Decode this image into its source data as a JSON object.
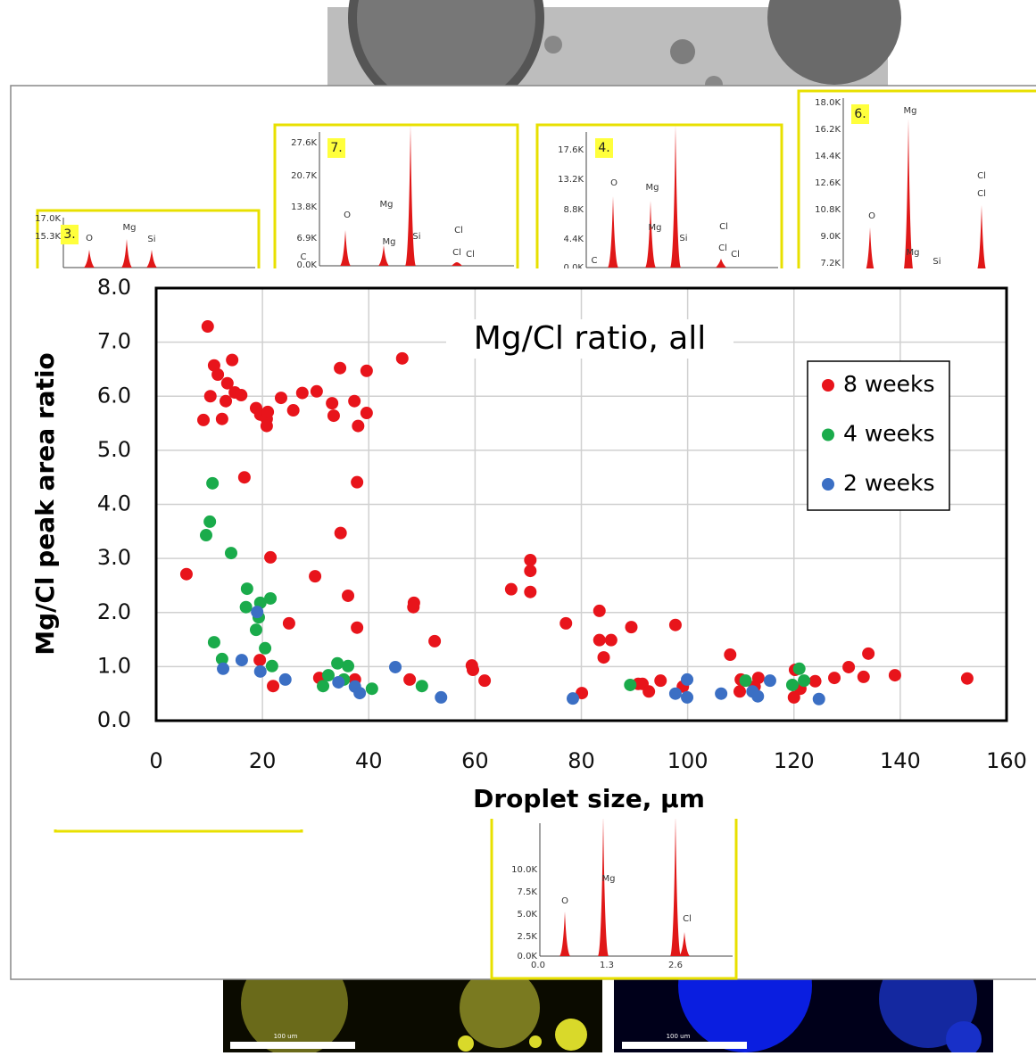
{
  "chart_data": {
    "type": "scatter",
    "title": "Mg/Cl ratio, all",
    "x_label": "Droplet size, µm",
    "y_label": "Mg/Cl peak area ratio",
    "xlim": [
      0,
      160
    ],
    "xticks": [
      0,
      20,
      40,
      60,
      80,
      100,
      120,
      140,
      160
    ],
    "ylim": [
      0,
      8
    ],
    "yticks": [
      {
        "value": 0,
        "label": "0.0"
      },
      {
        "value": 1,
        "label": "1.0"
      },
      {
        "value": 2,
        "label": "2.0"
      },
      {
        "value": 3,
        "label": "3.0"
      },
      {
        "value": 4,
        "label": "4.0"
      },
      {
        "value": 5,
        "label": "5.0"
      },
      {
        "value": 6,
        "label": "6.0"
      },
      {
        "value": 7,
        "label": "7.0"
      },
      {
        "value": 8,
        "label": "8.0"
      }
    ],
    "grid": true,
    "legend": "upper right",
    "series": [
      {
        "name": "8 weeks",
        "color": "#e8141b",
        "x": [
          9.7,
          10.9,
          14.3,
          11.6,
          13.4,
          14.8,
          8.9,
          10.2,
          12.4,
          16,
          13.1,
          18.8,
          19.6,
          20.8,
          20.8,
          21,
          23.5,
          25.8,
          27.5,
          30.2,
          33.1,
          33.4,
          34.6,
          37.3,
          38,
          39.6,
          39.6,
          46.3,
          16.6,
          37.8,
          34.7,
          5.7,
          21.5,
          29.9,
          36.1,
          25,
          37.8,
          48.5,
          48.4,
          52.4,
          19.5,
          22,
          30.7,
          37.4,
          47.7,
          59.4,
          59.6,
          61.8,
          66.8,
          70.4,
          70.4,
          70.4,
          77.1,
          83.4,
          83.4,
          85.6,
          84.2,
          89.4,
          97.7,
          80.1,
          90.7,
          91.5,
          92.7,
          94.9,
          99.1,
          108,
          110,
          109.8,
          112.6,
          113.3,
          120.2,
          120,
          124,
          127.6,
          130.3,
          133.1,
          134,
          139,
          152.6,
          121.2
        ],
        "values": [
          7.29,
          6.57,
          6.67,
          6.4,
          6.24,
          6.07,
          5.56,
          6.0,
          5.58,
          6.02,
          5.91,
          5.78,
          5.66,
          5.58,
          5.45,
          5.71,
          5.97,
          5.74,
          6.06,
          6.09,
          5.87,
          5.64,
          6.52,
          5.91,
          5.45,
          6.47,
          5.69,
          6.7,
          4.5,
          4.41,
          3.47,
          2.71,
          3.02,
          2.67,
          2.31,
          1.8,
          1.72,
          2.18,
          2.1,
          1.47,
          1.12,
          0.64,
          0.79,
          0.76,
          0.76,
          1.02,
          0.94,
          0.74,
          2.43,
          2.97,
          2.77,
          2.38,
          1.8,
          2.03,
          1.49,
          1.49,
          1.17,
          1.73,
          1.77,
          0.51,
          0.68,
          0.68,
          0.54,
          0.74,
          0.63,
          1.22,
          0.76,
          0.54,
          0.63,
          0.79,
          0.94,
          0.43,
          0.73,
          0.79,
          0.99,
          0.81,
          1.24,
          0.84,
          0.78,
          0.59
        ]
      },
      {
        "name": "4 weeks",
        "color": "#1aab4b",
        "x": [
          10.6,
          10.1,
          9.4,
          14.1,
          17.1,
          21.5,
          19.6,
          16.9,
          19.3,
          18.8,
          10.9,
          20.5,
          12.4,
          21.8,
          34.1,
          36.1,
          32.4,
          35.3,
          31.4,
          40.6,
          50,
          89.2,
          110.9,
          119.7,
          121,
          121.9
        ],
        "values": [
          4.39,
          3.68,
          3.43,
          3.1,
          2.44,
          2.26,
          2.18,
          2.1,
          1.91,
          1.68,
          1.45,
          1.34,
          1.14,
          1.01,
          1.06,
          1.01,
          0.84,
          0.76,
          0.64,
          0.59,
          0.64,
          0.66,
          0.74,
          0.66,
          0.96,
          0.74
        ]
      },
      {
        "name": "2 weeks",
        "color": "#3b6fc4",
        "x": [
          19,
          12.6,
          16.1,
          19.6,
          24.3,
          34.3,
          37.4,
          38.3,
          45,
          53.6,
          78.4,
          97.7,
          99.9,
          99.9,
          106.3,
          112.2,
          113.2,
          115.5,
          124.7
        ],
        "values": [
          2.01,
          0.96,
          1.12,
          0.91,
          0.76,
          0.71,
          0.63,
          0.51,
          0.99,
          0.43,
          0.41,
          0.5,
          0.76,
          0.43,
          0.5,
          0.54,
          0.45,
          0.74,
          0.4
        ]
      }
    ]
  },
  "insets": [
    {
      "label": "3.",
      "yticks": [
        "17.0K",
        "15.3K"
      ],
      "elements": [
        "O",
        "Mg",
        "Si"
      ]
    },
    {
      "label": "7.",
      "yticks": [
        "27.6K",
        "20.7K",
        "13.8K",
        "6.9K",
        "0.0K"
      ],
      "elements": [
        "C",
        "O",
        "Mg",
        "Mg",
        "Si",
        "Cl",
        "Cl",
        "Cl"
      ]
    },
    {
      "label": "4.",
      "yticks": [
        "17.6K",
        "13.2K",
        "8.8K",
        "4.4K",
        "0.0K"
      ],
      "elements": [
        "C",
        "O",
        "Mg",
        "Mg",
        "Si",
        "Cl",
        "Cl",
        "Cl"
      ]
    },
    {
      "label": "6.",
      "yticks": [
        "18.0K",
        "16.2K",
        "14.4K",
        "12.6K",
        "10.8K",
        "9.0K",
        "7.2K"
      ],
      "elements": [
        "Mg",
        "Cl",
        "Cl",
        "O",
        "Mg",
        "Si"
      ]
    },
    {
      "yticks": [
        "10.0K",
        "7.5K",
        "5.0K",
        "2.5K",
        "0.0K"
      ],
      "xticks": [
        "0.0",
        "1.3",
        "2.6"
      ],
      "elements": [
        "O",
        "Mg",
        "Cl"
      ]
    }
  ],
  "scale_bars": [
    "100 um",
    "100 um"
  ]
}
